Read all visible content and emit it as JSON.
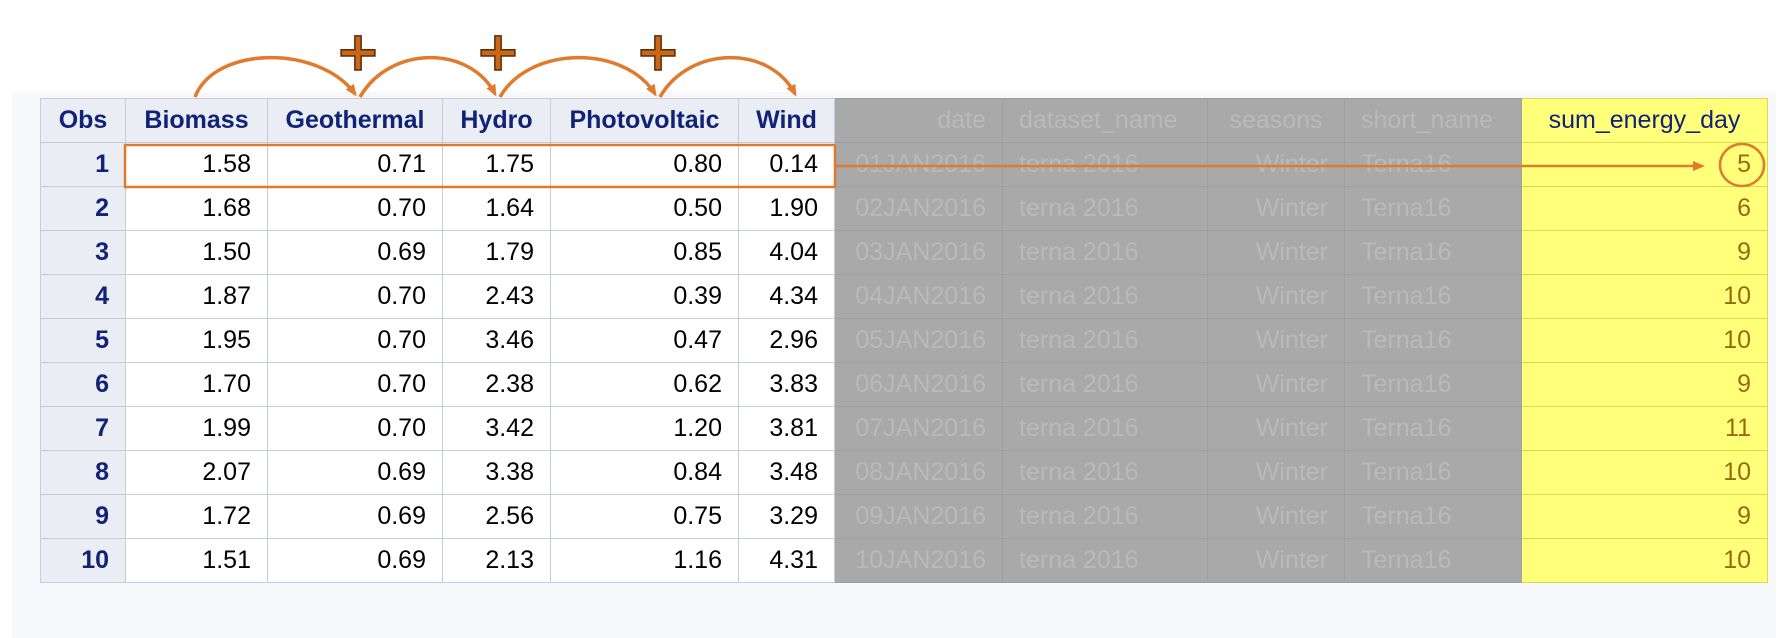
{
  "table": {
    "columns": [
      "Obs",
      "Biomass",
      "Geothermal",
      "Hydro",
      "Photovoltaic",
      "Wind",
      "date",
      "dataset_name",
      "seasons",
      "short_name",
      "sum_energy_day"
    ],
    "rows": [
      [
        "1",
        "1.58",
        "0.71",
        "1.75",
        "0.80",
        "0.14",
        "01JAN2016",
        "terna 2016",
        "Winter",
        "Terna16",
        "5"
      ],
      [
        "2",
        "1.68",
        "0.70",
        "1.64",
        "0.50",
        "1.90",
        "02JAN2016",
        "terna 2016",
        "Winter",
        "Terna16",
        "6"
      ],
      [
        "3",
        "1.50",
        "0.69",
        "1.79",
        "0.85",
        "4.04",
        "03JAN2016",
        "terna 2016",
        "Winter",
        "Terna16",
        "9"
      ],
      [
        "4",
        "1.87",
        "0.70",
        "2.43",
        "0.39",
        "4.34",
        "04JAN2016",
        "terna 2016",
        "Winter",
        "Terna16",
        "10"
      ],
      [
        "5",
        "1.95",
        "0.70",
        "3.46",
        "0.47",
        "2.96",
        "05JAN2016",
        "terna 2016",
        "Winter",
        "Terna16",
        "10"
      ],
      [
        "6",
        "1.70",
        "0.70",
        "2.38",
        "0.62",
        "3.83",
        "06JAN2016",
        "terna 2016",
        "Winter",
        "Terna16",
        "9"
      ],
      [
        "7",
        "1.99",
        "0.70",
        "3.42",
        "1.20",
        "3.81",
        "07JAN2016",
        "terna 2016",
        "Winter",
        "Terna16",
        "11"
      ],
      [
        "8",
        "2.07",
        "0.69",
        "3.38",
        "0.84",
        "3.48",
        "08JAN2016",
        "terna 2016",
        "Winter",
        "Terna16",
        "10"
      ],
      [
        "9",
        "1.72",
        "0.69",
        "2.56",
        "0.75",
        "3.29",
        "09JAN2016",
        "terna 2016",
        "Winter",
        "Terna16",
        "9"
      ],
      [
        "10",
        "1.51",
        "0.69",
        "2.13",
        "1.16",
        "4.31",
        "10JAN2016",
        "terna 2016",
        "Winter",
        "Terna16",
        "10"
      ]
    ]
  },
  "annotations": {
    "plus_symbol": "+",
    "accent_color": "#e07a2c",
    "highlight_color": "#ffff7a",
    "greyed_color": "#a9a9a9"
  }
}
